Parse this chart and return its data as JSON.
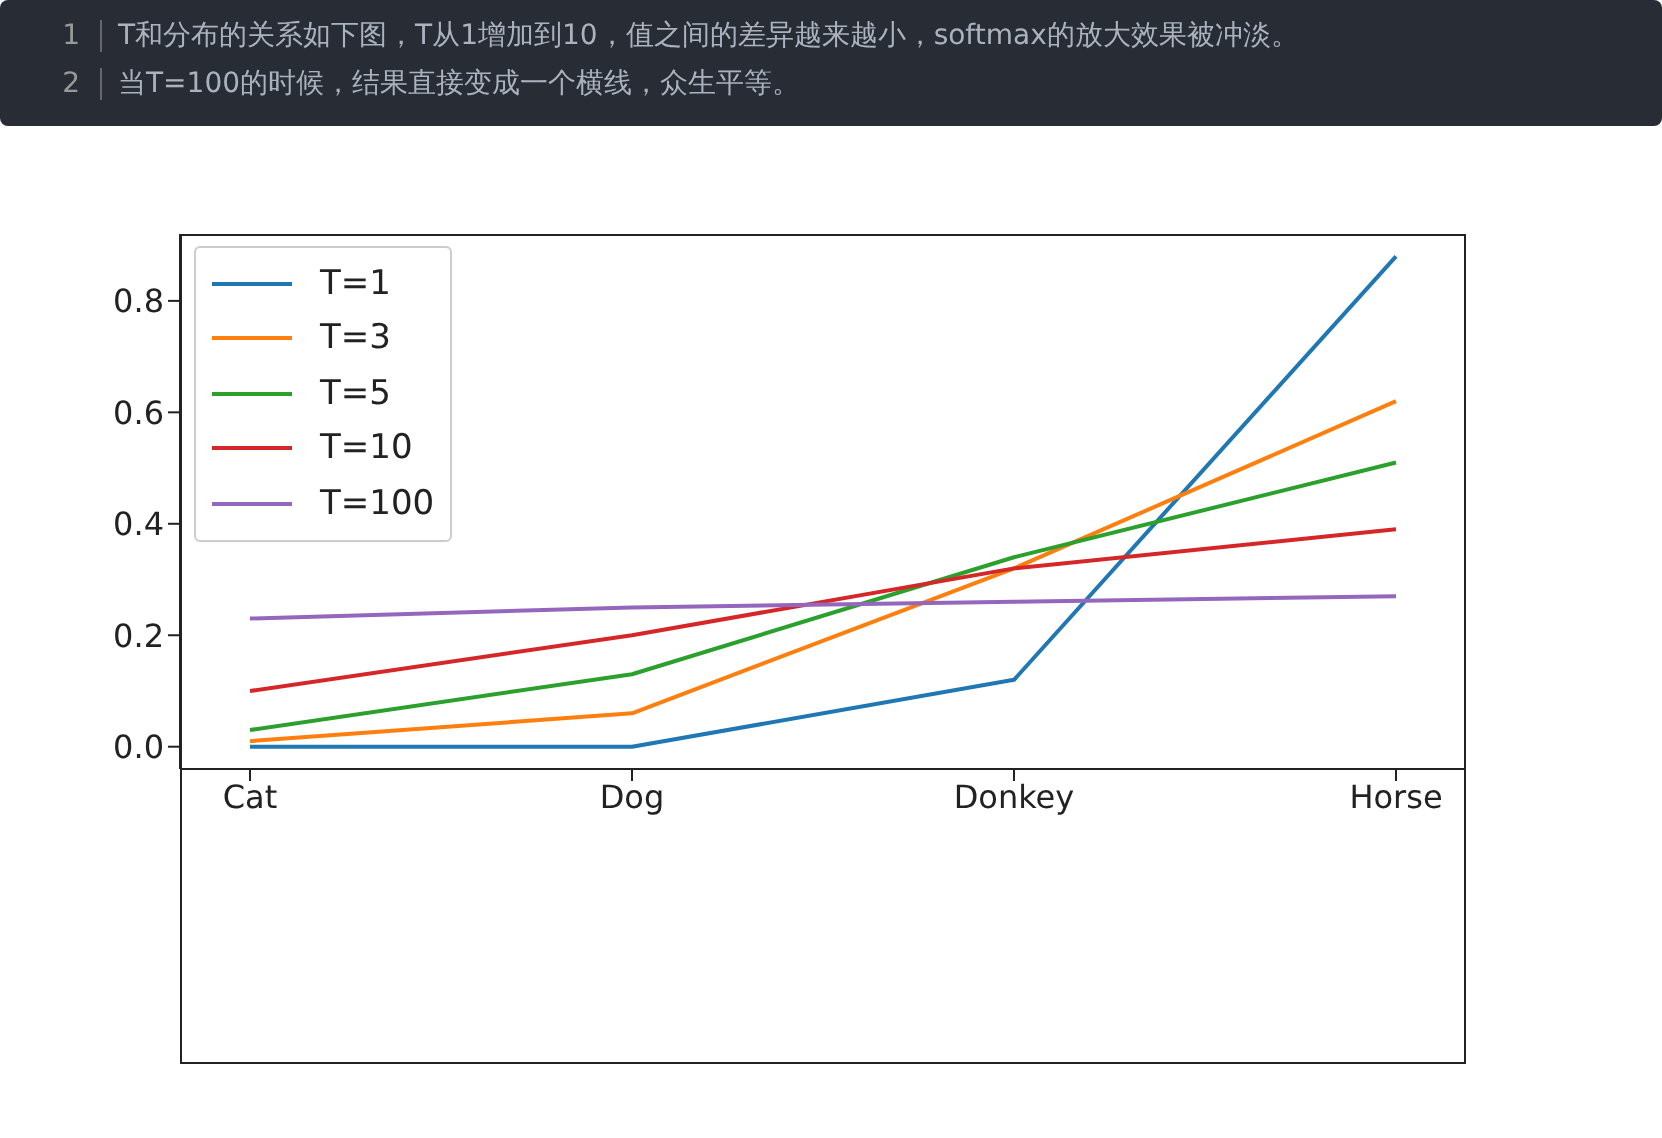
{
  "chart_data": {
    "type": "line",
    "annotations": [
      "1",
      "T和分布的关系如下图，T从1增加到10，值之间的差异越来越小，softmax的放大效果被冲淡。",
      "2",
      "当T=100的时候，结果直接变成一个横线，众生平等。"
    ],
    "categories": [
      "Cat",
      "Dog",
      "Donkey",
      "Horse"
    ],
    "series": [
      {
        "name": "T=1",
        "color": "#1f77b4",
        "values": [
          0.0,
          0.0,
          0.12,
          0.88
        ]
      },
      {
        "name": "T=3",
        "color": "#ff7f0e",
        "values": [
          0.01,
          0.06,
          0.32,
          0.62
        ]
      },
      {
        "name": "T=5",
        "color": "#2ca02c",
        "values": [
          0.03,
          0.13,
          0.34,
          0.51
        ]
      },
      {
        "name": "T=10",
        "color": "#d62728",
        "values": [
          0.1,
          0.2,
          0.32,
          0.39
        ]
      },
      {
        "name": "T=100",
        "color": "#9467bd",
        "values": [
          0.23,
          0.25,
          0.26,
          0.27
        ]
      }
    ],
    "ylim": [
      -0.04,
      0.92
    ],
    "yticks": [
      {
        "value": 0,
        "label": "0.0"
      },
      0.2,
      0.4,
      0.6,
      0.8
    ],
    "grid": false,
    "legend": "top left",
    "marker": "none",
    "line_style": "solid"
  }
}
